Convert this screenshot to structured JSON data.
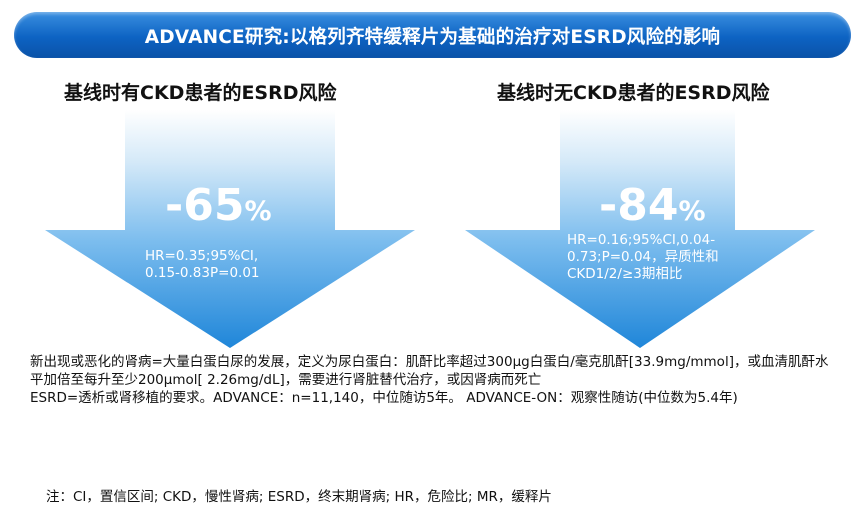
{
  "banner": {
    "title": "ADVANCE研究:以格列齐特缓释片为基础的治疗对ESRD风险的影响",
    "color": "#0d63c3"
  },
  "panels": [
    {
      "heading": "基线时有CKD患者的ESRD风险",
      "value": "-65",
      "unit": "%",
      "stats": "HR=0.35;95%CI, 0.15-0.83P=0.01"
    },
    {
      "heading": "基线时无CKD患者的ESRD风险",
      "value": "-84",
      "unit": "%",
      "stats": "HR=0.16;95%CI,0.04-0.73;P=0.04，异质性和CKD1/2/≥3期相比"
    }
  ],
  "notes": {
    "definition": "新出现或恶化的肾病=大量白蛋白尿的发展，定义为尿白蛋白：肌酐比率超过300μg白蛋白/毫克肌酐[33.9mg/mmol]，或血清肌酐水平加倍至每升至少200μmol[ 2.26mg/dL]，需要进行肾脏替代治疗，或因肾病而死亡",
    "esrd": "ESRD=透析或肾移植的要求。ADVANCE：n=11,140，中位随访5年。 ADVANCE-ON：观察性随访(中位数为5.4年)",
    "footnote": "注：CI，置信区间; CKD，慢性肾病; ESRD，终末期肾病; HR，危险比; MR，缓释片"
  },
  "arrow_colors": {
    "top": "#ffffff",
    "bottom": "#1f86d9"
  }
}
